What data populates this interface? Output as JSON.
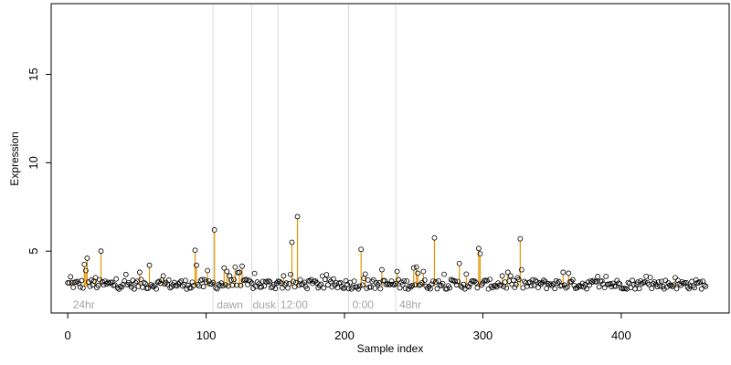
{
  "chart_data": {
    "type": "scatter",
    "title": "",
    "xlabel": "Sample index",
    "ylabel": "Expression",
    "xlim": [
      -12,
      478
    ],
    "ylim": [
      1.5,
      19
    ],
    "x_ticks": [
      0,
      100,
      200,
      300,
      400
    ],
    "y_ticks": [
      5,
      10,
      15
    ],
    "grid": false,
    "baseline": 3.0,
    "colors": {
      "points_stroke": "#000000",
      "highlight_stems": "#e69500",
      "group_dividers": "#d9d9d9",
      "group_labels": "#a6a6a6"
    },
    "group_dividers": [
      105,
      133,
      152,
      203,
      237
    ],
    "group_labels": [
      {
        "label": "24hr",
        "x": 3
      },
      {
        "label": "dawn",
        "x": 107
      },
      {
        "label": "dusk",
        "x": 133
      },
      {
        "label": "12:00",
        "x": 153
      },
      {
        "label": "0:00",
        "x": 205
      },
      {
        "label": "48hr",
        "x": 239
      }
    ],
    "n_points": 462,
    "highlights": [
      {
        "x": 2,
        "y": 3.55
      },
      {
        "x": 12,
        "y": 4.25
      },
      {
        "x": 13,
        "y": 3.9
      },
      {
        "x": 14,
        "y": 4.6
      },
      {
        "x": 20,
        "y": 3.5
      },
      {
        "x": 24,
        "y": 5.0
      },
      {
        "x": 52,
        "y": 3.8
      },
      {
        "x": 59,
        "y": 4.2
      },
      {
        "x": 69,
        "y": 3.6
      },
      {
        "x": 92,
        "y": 5.05
      },
      {
        "x": 93,
        "y": 4.2
      },
      {
        "x": 101,
        "y": 3.9
      },
      {
        "x": 106,
        "y": 6.2
      },
      {
        "x": 113,
        "y": 4.05
      },
      {
        "x": 115,
        "y": 3.85
      },
      {
        "x": 117,
        "y": 3.6
      },
      {
        "x": 121,
        "y": 4.1
      },
      {
        "x": 124,
        "y": 3.8
      },
      {
        "x": 126,
        "y": 4.15
      },
      {
        "x": 156,
        "y": 3.6
      },
      {
        "x": 162,
        "y": 5.5
      },
      {
        "x": 166,
        "y": 6.95
      },
      {
        "x": 212,
        "y": 5.1
      },
      {
        "x": 215,
        "y": 3.7
      },
      {
        "x": 227,
        "y": 3.95
      },
      {
        "x": 238,
        "y": 3.85
      },
      {
        "x": 250,
        "y": 4.05
      },
      {
        "x": 252,
        "y": 4.1
      },
      {
        "x": 253,
        "y": 3.75
      },
      {
        "x": 257,
        "y": 3.85
      },
      {
        "x": 265,
        "y": 5.75
      },
      {
        "x": 283,
        "y": 4.3
      },
      {
        "x": 288,
        "y": 3.7
      },
      {
        "x": 297,
        "y": 5.15
      },
      {
        "x": 298,
        "y": 4.85
      },
      {
        "x": 314,
        "y": 3.6
      },
      {
        "x": 318,
        "y": 3.8
      },
      {
        "x": 325,
        "y": 3.5
      },
      {
        "x": 327,
        "y": 5.7
      },
      {
        "x": 358,
        "y": 3.8
      },
      {
        "x": 362,
        "y": 3.75
      },
      {
        "x": 439,
        "y": 3.5
      }
    ]
  }
}
